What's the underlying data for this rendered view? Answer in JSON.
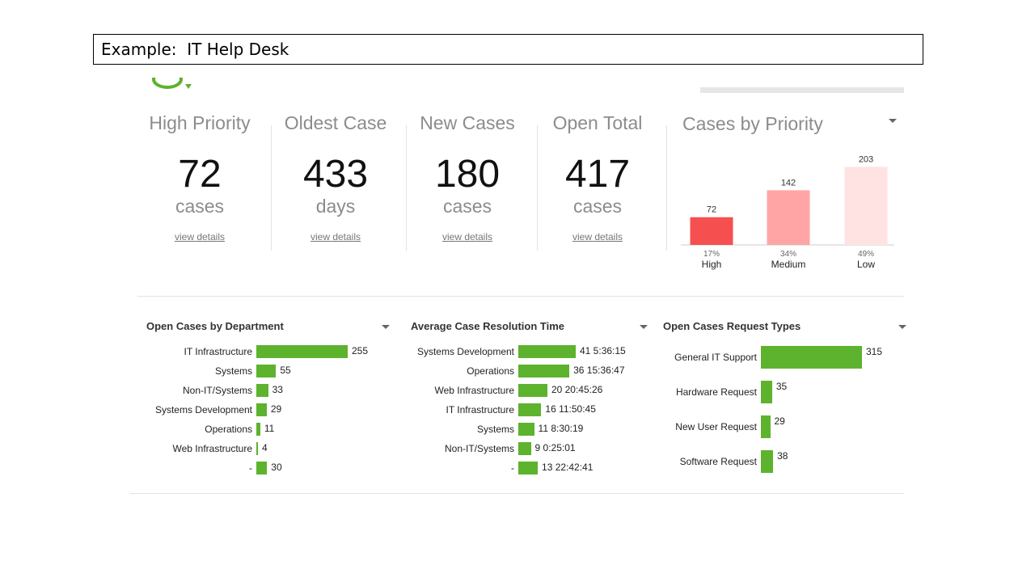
{
  "slide": {
    "title": "Example:  IT Help Desk"
  },
  "colors": {
    "accent_green": "#5db22e",
    "high": "#f5504f",
    "medium": "#ffa5a5",
    "low": "#ffe3e3"
  },
  "kpis": [
    {
      "title": "High Priority",
      "value": "72",
      "unit": "cases",
      "link": "view details"
    },
    {
      "title": "Oldest Case",
      "value": "433",
      "unit": "days",
      "link": "view details"
    },
    {
      "title": "New Cases",
      "value": "180",
      "unit": "cases",
      "link": "view details"
    },
    {
      "title": "Open Total",
      "value": "417",
      "unit": "cases",
      "link": "view details"
    }
  ],
  "priority_panel": {
    "title": "Cases by Priority"
  },
  "chart_data": [
    {
      "type": "bar",
      "title": "Cases by Priority",
      "categories": [
        "High",
        "Medium",
        "Low"
      ],
      "values": [
        72,
        142,
        203
      ],
      "percent_labels": [
        "17%",
        "34%",
        "49%"
      ],
      "colors": [
        "#f5504f",
        "#ffa5a5",
        "#ffe3e3"
      ],
      "ylim": [
        0,
        210
      ],
      "grid": false
    },
    {
      "type": "bar",
      "orientation": "horizontal",
      "title": "Open Cases by Department",
      "categories": [
        "IT Infrastructure",
        "Systems",
        "Non-IT/Systems",
        "Systems Development",
        "Operations",
        "Web Infrastructure",
        "-"
      ],
      "values": [
        255,
        55,
        33,
        29,
        11,
        4,
        30
      ],
      "value_labels": [
        "255",
        "55",
        "33",
        "29",
        "11",
        "4",
        "30"
      ]
    },
    {
      "type": "bar",
      "orientation": "horizontal",
      "title": "Average Case Resolution Time",
      "categories": [
        "Systems Development",
        "Operations",
        "Web Infrastructure",
        "IT Infrastructure",
        "Systems",
        "Non-IT/Systems",
        "-"
      ],
      "values": [
        41.23,
        36.65,
        20.87,
        16.49,
        11.35,
        9.02,
        13.95
      ],
      "value_labels": [
        "41 5:36:15",
        "36 15:36:47",
        "20 20:45:26",
        "16 11:50:45",
        "11 8:30:19",
        "9 0:25:01",
        "13 22:42:41"
      ]
    },
    {
      "type": "bar",
      "orientation": "horizontal",
      "title": "Open Cases Request Types",
      "categories": [
        "General IT Support",
        "Hardware Request",
        "New User Request",
        "Software Request"
      ],
      "values": [
        315,
        35,
        29,
        38
      ],
      "value_labels": [
        "315",
        "35",
        "29",
        "38"
      ]
    }
  ]
}
